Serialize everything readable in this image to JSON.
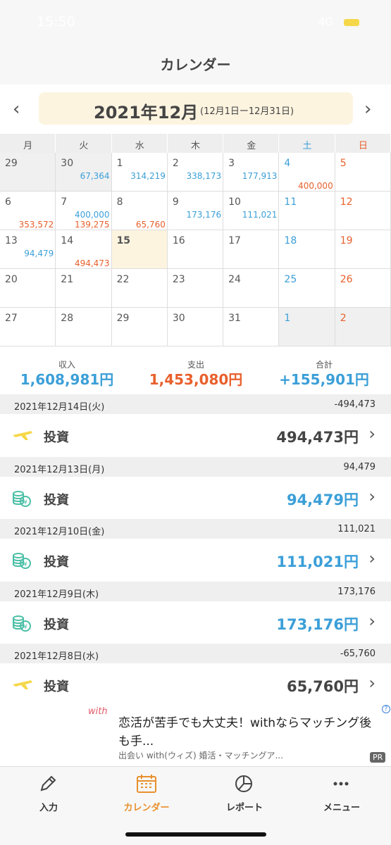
{
  "status": {
    "time": "15:50",
    "network": "4G"
  },
  "header": {
    "title": "カレンダー"
  },
  "month_nav": {
    "title": "2021年12月",
    "range": "(12月1日ー12月31日)"
  },
  "weekdays": [
    "月",
    "火",
    "水",
    "木",
    "金",
    "土",
    "日"
  ],
  "calendar": {
    "weeks": [
      [
        {
          "day": "29",
          "other_month": true
        },
        {
          "day": "30",
          "other_month": true,
          "income": "67,364"
        },
        {
          "day": "1",
          "income": "314,219"
        },
        {
          "day": "2",
          "income": "338,173"
        },
        {
          "day": "3",
          "income": "177,913"
        },
        {
          "day": "4",
          "expense": "400,000"
        },
        {
          "day": "5"
        }
      ],
      [
        {
          "day": "6",
          "expense": "353,572"
        },
        {
          "day": "7",
          "income": "400,000",
          "expense": "139,275"
        },
        {
          "day": "8",
          "expense": "65,760"
        },
        {
          "day": "9",
          "income": "173,176"
        },
        {
          "day": "10",
          "income": "111,021"
        },
        {
          "day": "11"
        },
        {
          "day": "12"
        }
      ],
      [
        {
          "day": "13",
          "income": "94,479"
        },
        {
          "day": "14",
          "expense": "494,473"
        },
        {
          "day": "15",
          "today": true
        },
        {
          "day": "16"
        },
        {
          "day": "17"
        },
        {
          "day": "18"
        },
        {
          "day": "19"
        }
      ],
      [
        {
          "day": "20"
        },
        {
          "day": "21"
        },
        {
          "day": "22"
        },
        {
          "day": "23"
        },
        {
          "day": "24"
        },
        {
          "day": "25"
        },
        {
          "day": "26"
        }
      ],
      [
        {
          "day": "27"
        },
        {
          "day": "28"
        },
        {
          "day": "29"
        },
        {
          "day": "30"
        },
        {
          "day": "31"
        },
        {
          "day": "1",
          "other_month": true
        },
        {
          "day": "2",
          "other_month": true
        }
      ]
    ]
  },
  "summary": [
    {
      "label": "収入",
      "value": "1,608,981円",
      "color": "#3b9fd8"
    },
    {
      "label": "支出",
      "value": "1,453,080円",
      "color": "#e8602c"
    },
    {
      "label": "合計",
      "value": "+155,901円",
      "color": "#3b9fd8"
    }
  ],
  "transactions": [
    {
      "date": "2021年12月14日(火)",
      "total": "-494,473",
      "item": {
        "category": "投資",
        "amount": "494,473円",
        "icon": "plane",
        "color": "#444444"
      }
    },
    {
      "date": "2021年12月13日(月)",
      "total": "94,479",
      "item": {
        "category": "投資",
        "amount": "94,479円",
        "icon": "coins",
        "color": "#3b9fd8"
      }
    },
    {
      "date": "2021年12月10日(金)",
      "total": "111,021",
      "item": {
        "category": "投資",
        "amount": "111,021円",
        "icon": "coins",
        "color": "#3b9fd8"
      }
    },
    {
      "date": "2021年12月9日(木)",
      "total": "173,176",
      "item": {
        "category": "投資",
        "amount": "173,176円",
        "icon": "coins",
        "color": "#3b9fd8"
      }
    },
    {
      "date": "2021年12月8日(水)",
      "total": "-65,760",
      "item": {
        "category": "投資",
        "amount": "65,760円",
        "icon": "plane",
        "color": "#444444"
      }
    }
  ],
  "ad": {
    "logo": "with",
    "headline": "恋活が苦手でも大丈夫！withならマッチング後も手...",
    "source": "出会い with(ウィズ) 婚活・マッチングア...",
    "badge": "PR"
  },
  "tabs": [
    {
      "label": "入力",
      "active": false
    },
    {
      "label": "カレンダー",
      "active": true
    },
    {
      "label": "レポート",
      "active": false
    },
    {
      "label": "メニュー",
      "active": false
    }
  ]
}
